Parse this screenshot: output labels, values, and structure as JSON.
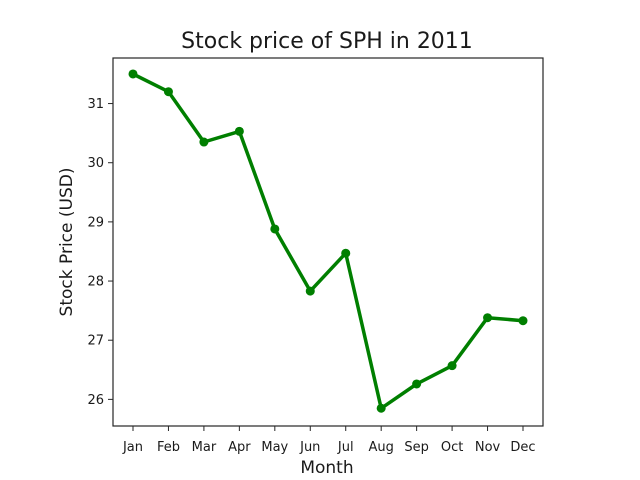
{
  "chart_data": {
    "type": "line",
    "title": "Stock price of SPH in 2011",
    "xlabel": "Month",
    "ylabel": "Stock Price (USD)",
    "categories": [
      "Jan",
      "Feb",
      "Mar",
      "Apr",
      "May",
      "Jun",
      "Jul",
      "Aug",
      "Sep",
      "Oct",
      "Nov",
      "Dec"
    ],
    "values": [
      31.5,
      31.2,
      30.35,
      30.53,
      28.88,
      27.83,
      28.47,
      25.85,
      26.26,
      26.57,
      27.38,
      27.33
    ],
    "yticks": [
      26,
      27,
      28,
      29,
      30,
      31
    ],
    "ylim": [
      25.55,
      31.77
    ],
    "grid": false,
    "color": "#007f00"
  }
}
